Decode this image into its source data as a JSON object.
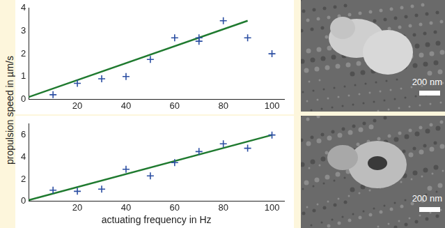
{
  "chart_data": [
    {
      "type": "scatter",
      "ylabel": "propulsion speed in µm/s",
      "xlim": [
        0,
        105
      ],
      "xticks": [
        20,
        40,
        60,
        80,
        100
      ],
      "ylim": [
        0,
        4
      ],
      "yticks": [
        0,
        1,
        2,
        3,
        4
      ],
      "grid": false,
      "series": [
        {
          "type": "scatter",
          "marker": "cross",
          "color": "#2b4ea2",
          "x": [
            10,
            20,
            30,
            40,
            50,
            60,
            70,
            70,
            80,
            90,
            100
          ],
          "values": [
            0.2,
            0.7,
            0.9,
            1.0,
            1.75,
            2.7,
            2.55,
            2.7,
            3.45,
            2.7,
            2.0
          ]
        },
        {
          "type": "line",
          "line_style": "solid",
          "color": "#1f7a2f",
          "x": [
            0,
            90
          ],
          "values": [
            0.1,
            3.45
          ]
        }
      ]
    },
    {
      "type": "scatter",
      "xlabel": "actuating frequency in Hz",
      "xlim": [
        0,
        105
      ],
      "xticks": [
        20,
        40,
        60,
        80,
        100
      ],
      "ylim": [
        0,
        7
      ],
      "yticks": [
        0,
        2,
        4,
        6
      ],
      "grid": false,
      "series": [
        {
          "type": "scatter",
          "marker": "cross",
          "color": "#2b4ea2",
          "x": [
            10,
            20,
            30,
            40,
            50,
            60,
            70,
            80,
            90,
            100
          ],
          "values": [
            1.0,
            0.9,
            1.1,
            2.9,
            2.3,
            3.5,
            4.5,
            5.2,
            4.8,
            6.0
          ]
        },
        {
          "type": "line",
          "line_style": "solid",
          "color": "#1f7a2f",
          "x": [
            0,
            100
          ],
          "values": [
            0.1,
            6.0
          ]
        }
      ]
    }
  ],
  "images": [
    {
      "scale_bar": "200 nm"
    },
    {
      "scale_bar": "200 nm"
    }
  ]
}
